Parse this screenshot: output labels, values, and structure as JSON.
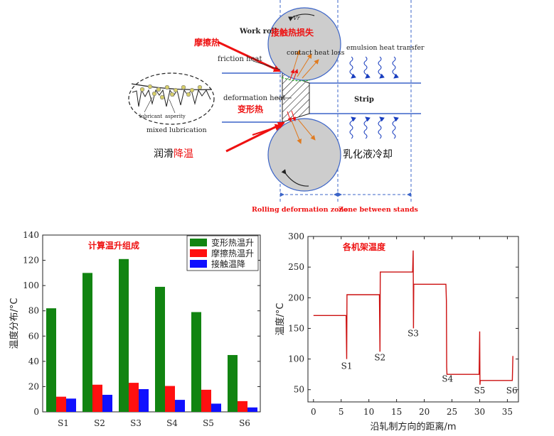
{
  "diagram": {
    "work_roll": "Work roll",
    "vr": "Vr",
    "contact_heat_loss_cn": "接触热损失",
    "friction_heat_cn": "摩擦热",
    "friction_heat": "friction heat",
    "contact_heat_loss": "contact heat loss",
    "emulsion_heat_transfer": "emulsion heat transfer",
    "deformation_heat": "deformation heat",
    "deformation_heat_cn": "变形热",
    "strip": "Strip",
    "lubricant": "lubricant",
    "asperity": "asperity",
    "mixed_lubrication": "mixed lubrication",
    "lubrication_cooling_cn_a": "润滑",
    "lubrication_cooling_cn_b": "降温",
    "emulsion_cooling_cn": "乳化液冷却",
    "rolling_zone": "Rolling deformation zone",
    "zone_between": "Zone between stands"
  },
  "chart_data": [
    {
      "type": "bar",
      "title": "计算温升组成",
      "ylabel": "温度分布/°C",
      "ylim": [
        0,
        140
      ],
      "yticks": [
        "0",
        "20",
        "40",
        "60",
        "80",
        "100",
        "120",
        "140"
      ],
      "categories": [
        "S1",
        "S2",
        "S3",
        "S4",
        "S5",
        "S6"
      ],
      "series": [
        {
          "name": "变形热温升",
          "color": "#118411",
          "values": [
            82,
            110,
            121,
            99,
            79,
            45
          ]
        },
        {
          "name": "摩擦热温升",
          "color": "#ff1010",
          "values": [
            12,
            21.5,
            23,
            20.5,
            17.5,
            8.5
          ]
        },
        {
          "name": "接触温降",
          "color": "#1010ff",
          "values": [
            10.5,
            13.5,
            18,
            9.5,
            6.5,
            3.5
          ]
        }
      ]
    },
    {
      "type": "line",
      "title": "各机架温度",
      "xlabel": "沿轧制方向的距离/m",
      "ylabel": "温度/°C",
      "xlim": [
        -1,
        37
      ],
      "ylim": [
        30,
        300
      ],
      "xticks": [
        "0",
        "5",
        "10",
        "15",
        "20",
        "25",
        "30",
        "35"
      ],
      "yticks": [
        "50",
        "100",
        "150",
        "200",
        "250",
        "300"
      ],
      "color": "#cc1010",
      "x": [
        0,
        5.9,
        6.0,
        6.05,
        6.1,
        11.9,
        12.0,
        12.05,
        12.1,
        17.9,
        18.0,
        18.05,
        18.1,
        23.9,
        24.0,
        24.05,
        24.1,
        29.9,
        30.0,
        30.05,
        30.1,
        35.9,
        36.0
      ],
      "y": [
        171,
        171,
        100,
        205,
        205,
        205,
        112,
        242,
        242,
        242,
        277,
        150,
        222,
        222,
        195,
        87,
        75,
        75,
        145,
        58,
        65,
        65,
        105
      ],
      "annotations": [
        {
          "text": "S1",
          "x": 6,
          "y": 84
        },
        {
          "text": "S2",
          "x": 12,
          "y": 98
        },
        {
          "text": "S3",
          "x": 18,
          "y": 137
        },
        {
          "text": "S4",
          "x": 24.2,
          "y": 63
        },
        {
          "text": "S5",
          "x": 30,
          "y": 44
        },
        {
          "text": "S6",
          "x": 35.8,
          "y": 44
        }
      ]
    }
  ]
}
